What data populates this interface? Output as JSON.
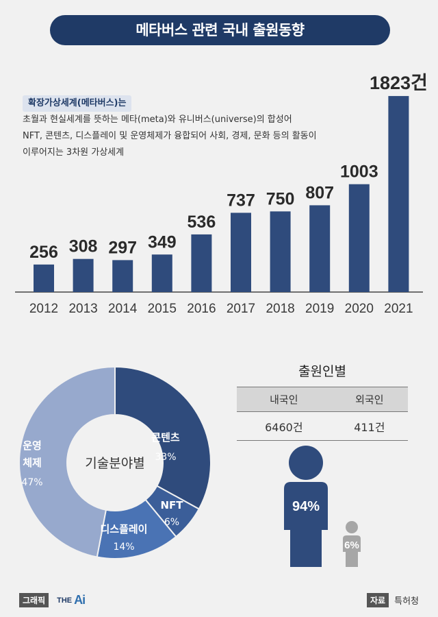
{
  "title": "메타버스 관련 국내 출원동향",
  "description": {
    "highlight": "확장가상세계(메타버스)는",
    "line1": "초월과 현실세계를 뜻하는 메타(meta)와 유니버스(universe)의 합성어",
    "line2": "NFT, 콘텐츠, 디스플레이 및 운영체제가 융합되어 사회, 경제, 문화 등의 활동이",
    "line3": "이루어지는 3차원 가상세계"
  },
  "chart_data": [
    {
      "type": "bar",
      "categories": [
        "2012",
        "2013",
        "2014",
        "2015",
        "2016",
        "2017",
        "2018",
        "2019",
        "2020",
        "2021"
      ],
      "values": [
        256,
        308,
        297,
        349,
        536,
        737,
        750,
        807,
        1003,
        1823
      ],
      "value_labels": [
        "256",
        "308",
        "297",
        "349",
        "536",
        "737",
        "750",
        "807",
        "1003",
        "1823건"
      ],
      "ylim": [
        0,
        1900
      ],
      "color": "#2f4b7c"
    },
    {
      "type": "pie",
      "title": "기술분야별",
      "slices": [
        {
          "name": "콘텐츠",
          "value": 33,
          "label": "33%",
          "color": "#2f4b7c"
        },
        {
          "name": "NFT",
          "value": 6,
          "label": "6%",
          "color": "#3b5e99"
        },
        {
          "name": "디스플레이",
          "value": 14,
          "label": "14%",
          "color": "#4a73b4"
        },
        {
          "name": "운영체제",
          "name_line1": "운영",
          "name_line2": "체제",
          "value": 47,
          "label": "47%",
          "color": "#97a9cd"
        }
      ]
    }
  ],
  "applicant": {
    "title": "출원인별",
    "headers": [
      "내국인",
      "외국인"
    ],
    "values": [
      "6460건",
      "411건"
    ],
    "domestic_pct": 94,
    "domestic_label": "94%",
    "foreign_pct": 6,
    "foreign_label": "6%",
    "domestic_color": "#2f4b7c",
    "foreign_color": "#a6a6a6"
  },
  "footer": {
    "graphic_label": "그래픽",
    "logo_prefix": "THE",
    "logo_mark": "Ai",
    "source_label": "자료",
    "source_value": "특허청"
  }
}
